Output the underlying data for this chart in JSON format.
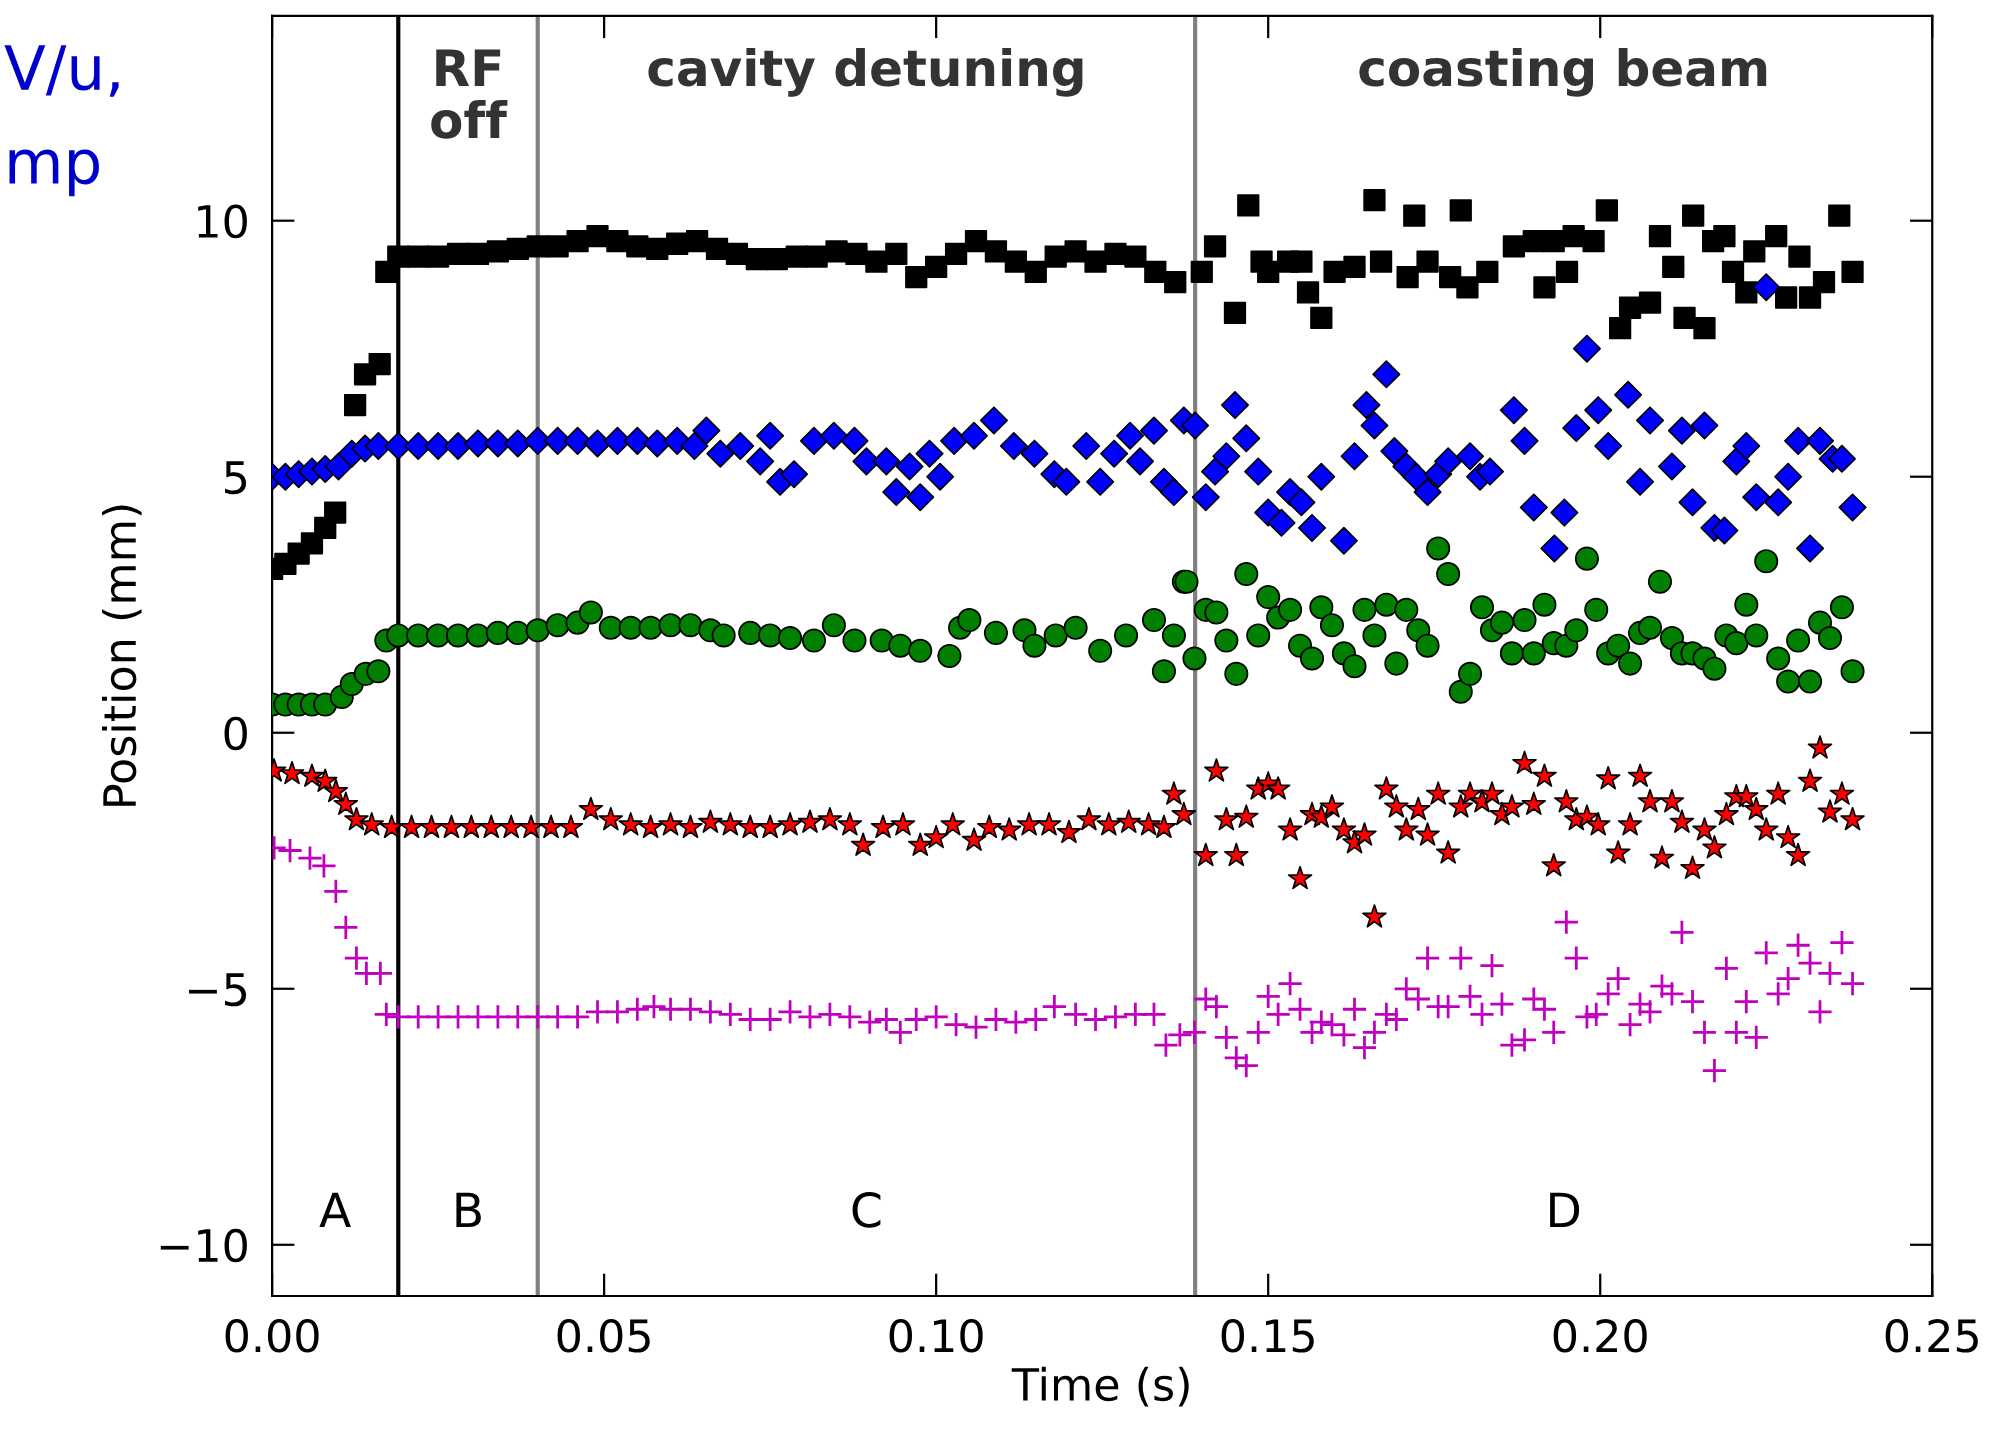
{
  "chart_data": {
    "type": "scatter",
    "xlabel": "Time (s)",
    "ylabel": "Position (mm)",
    "xlim": [
      0,
      0.25
    ],
    "ylim": [
      -11,
      14
    ],
    "xticks": [
      {
        "value": 0,
        "label": "0.00"
      },
      {
        "value": 0.05,
        "label": "0.05"
      },
      {
        "value": 0.1,
        "label": "0.10"
      },
      {
        "value": 0.15,
        "label": "0.15"
      },
      {
        "value": 0.2,
        "label": "0.20"
      },
      {
        "value": 0.25,
        "label": "0.25"
      }
    ],
    "yticks": [
      {
        "value": -10,
        "label": "−10"
      },
      {
        "value": -5,
        "label": "−5"
      },
      0,
      5,
      10
    ],
    "grid": false,
    "legend": false,
    "ref_lines": [
      {
        "axis": "x",
        "value": 0.019,
        "color": "#000000"
      },
      {
        "axis": "x",
        "value": 0.04,
        "color": "#808080"
      },
      {
        "axis": "x",
        "value": 0.139,
        "color": "#808080"
      }
    ],
    "annotations": [
      "RF\noff",
      "cavity detuning",
      "coasting beam",
      "A",
      "B",
      "C",
      "D",
      "V/u,",
      "mp"
    ],
    "series": [
      {
        "color": "#000000",
        "marker": "square",
        "x": [
          0,
          0.002,
          0.004,
          0.006,
          0.008,
          0.0095,
          0.0125,
          0.014,
          0.0162,
          0.0172,
          0.019,
          0.022,
          0.025,
          0.028,
          0.031,
          0.034,
          0.037,
          0.04,
          0.043,
          0.046,
          0.049,
          0.052,
          0.055,
          0.058,
          0.061,
          0.064,
          0.067,
          0.07,
          0.073,
          0.076,
          0.079,
          0.082,
          0.085,
          0.088,
          0.091,
          0.094,
          0.097,
          0.1,
          0.103,
          0.106,
          0.109,
          0.112,
          0.115,
          0.118,
          0.121,
          0.124,
          0.127,
          0.13,
          0.133,
          0.136,
          0.14,
          0.142,
          0.145,
          0.147,
          0.149,
          0.15,
          0.153,
          0.155,
          0.156,
          0.158,
          0.16,
          0.163,
          0.166,
          0.167,
          0.171,
          0.172,
          0.174,
          0.1774,
          0.179,
          0.18,
          0.183,
          0.187,
          0.19,
          0.1916,
          0.193,
          0.195,
          0.196,
          0.199,
          0.201,
          0.203,
          0.2045,
          0.2075,
          0.209,
          0.211,
          0.2127,
          0.214,
          0.2157,
          0.217,
          0.2187,
          0.22,
          0.222,
          0.2232,
          0.2265,
          0.228,
          0.23,
          0.2316,
          0.2337,
          0.236,
          0.238
        ],
        "values": [
          3.2,
          3.3,
          3.5,
          3.7,
          4.0,
          4.3,
          6.4,
          7.0,
          7.2,
          9.0,
          9.3,
          9.3,
          9.3,
          9.35,
          9.35,
          9.4,
          9.45,
          9.5,
          9.5,
          9.6,
          9.7,
          9.6,
          9.5,
          9.45,
          9.55,
          9.6,
          9.45,
          9.35,
          9.25,
          9.25,
          9.3,
          9.3,
          9.4,
          9.35,
          9.2,
          9.35,
          8.9,
          9.1,
          9.35,
          9.6,
          9.4,
          9.2,
          9.0,
          9.3,
          9.4,
          9.2,
          9.35,
          9.3,
          9.0,
          8.8,
          9.0,
          9.5,
          8.2,
          10.3,
          9.2,
          9.0,
          9.2,
          9.2,
          8.6,
          8.1,
          9.0,
          9.1,
          10.4,
          9.2,
          8.9,
          10.1,
          9.2,
          8.9,
          10.2,
          8.7,
          9.0,
          9.5,
          9.6,
          8.7,
          9.6,
          9.0,
          9.7,
          9.6,
          10.2,
          7.9,
          8.3,
          8.4,
          9.7,
          9.1,
          8.1,
          10.1,
          7.9,
          9.6,
          9.7,
          9.0,
          8.6,
          9.4,
          9.7,
          8.5,
          9.3,
          8.5,
          8.8,
          10.1,
          9.0
        ]
      },
      {
        "color": "#0000ff",
        "marker": "diamond",
        "x": [
          0,
          0.002,
          0.004,
          0.006,
          0.008,
          0.01,
          0.012,
          0.014,
          0.016,
          0.019,
          0.022,
          0.025,
          0.028,
          0.031,
          0.034,
          0.037,
          0.04,
          0.043,
          0.046,
          0.049,
          0.052,
          0.055,
          0.058,
          0.061,
          0.0636,
          0.0654,
          0.0675,
          0.0705,
          0.0735,
          0.075,
          0.0765,
          0.0786,
          0.0816,
          0.0846,
          0.0877,
          0.0895,
          0.0925,
          0.094,
          0.096,
          0.0976,
          0.099,
          0.1006,
          0.1027,
          0.1057,
          0.1087,
          0.1117,
          0.1148,
          0.1178,
          0.1196,
          0.1226,
          0.1247,
          0.1268,
          0.1292,
          0.1307,
          0.1328,
          0.1343,
          0.1358,
          0.1373,
          0.139,
          0.1406,
          0.142,
          0.1437,
          0.145,
          0.1467,
          0.1485,
          0.15,
          0.152,
          0.1533,
          0.155,
          0.1566,
          0.158,
          0.1614,
          0.163,
          0.1648,
          0.166,
          0.1678,
          0.169,
          0.1708,
          0.1723,
          0.174,
          0.1756,
          0.1771,
          0.1804,
          0.1819,
          0.1834,
          0.187,
          0.1886,
          0.19,
          0.1931,
          0.1946,
          0.1964,
          0.198,
          0.1997,
          0.2012,
          0.2042,
          0.206,
          0.2075,
          0.2108,
          0.2123,
          0.2139,
          0.2157,
          0.2172,
          0.2187,
          0.2205,
          0.222,
          0.2235,
          0.225,
          0.2268,
          0.2283,
          0.2298,
          0.2316,
          0.2331,
          0.235,
          0.2364,
          0.238
        ],
        "values": [
          5.0,
          5.0,
          5.05,
          5.1,
          5.15,
          5.2,
          5.45,
          5.55,
          5.6,
          5.6,
          5.6,
          5.6,
          5.6,
          5.65,
          5.65,
          5.65,
          5.7,
          5.7,
          5.7,
          5.65,
          5.7,
          5.7,
          5.65,
          5.7,
          5.6,
          5.9,
          5.45,
          5.6,
          5.3,
          5.8,
          4.9,
          5.05,
          5.7,
          5.8,
          5.7,
          5.3,
          5.3,
          4.7,
          5.2,
          4.6,
          5.45,
          5.0,
          5.7,
          5.8,
          6.1,
          5.6,
          5.45,
          5.05,
          4.9,
          5.6,
          4.9,
          5.45,
          5.8,
          5.3,
          5.9,
          4.9,
          4.7,
          6.1,
          6.0,
          4.6,
          5.1,
          5.4,
          6.4,
          5.75,
          5.1,
          4.3,
          4.1,
          4.7,
          4.5,
          4.0,
          5.0,
          3.75,
          5.4,
          6.4,
          6.0,
          7.0,
          5.5,
          5.2,
          5.0,
          4.7,
          5.05,
          5.3,
          5.4,
          5.0,
          5.1,
          6.3,
          5.7,
          4.4,
          3.6,
          4.3,
          5.95,
          7.5,
          6.3,
          5.6,
          6.6,
          4.9,
          6.1,
          5.2,
          5.9,
          4.5,
          6.0,
          4.0,
          3.95,
          5.3,
          5.6,
          4.6,
          8.7,
          4.5,
          5.0,
          5.7,
          3.6,
          5.7,
          5.35,
          5.35,
          4.4
        ]
      },
      {
        "color": "#007f00",
        "marker": "circle",
        "x": [
          0,
          0.002,
          0.004,
          0.006,
          0.008,
          0.0105,
          0.012,
          0.0141,
          0.016,
          0.0172,
          0.019,
          0.022,
          0.025,
          0.028,
          0.031,
          0.034,
          0.037,
          0.04,
          0.043,
          0.046,
          0.048,
          0.051,
          0.054,
          0.057,
          0.06,
          0.063,
          0.066,
          0.068,
          0.072,
          0.075,
          0.078,
          0.0816,
          0.0846,
          0.0877,
          0.0918,
          0.0946,
          0.0976,
          0.102,
          0.1036,
          0.105,
          0.109,
          0.1133,
          0.1148,
          0.118,
          0.121,
          0.1247,
          0.1286,
          0.1328,
          0.1343,
          0.1358,
          0.1373,
          0.1377,
          0.1389,
          0.1406,
          0.1422,
          0.1437,
          0.1452,
          0.1467,
          0.1485,
          0.15,
          0.1515,
          0.1533,
          0.1548,
          0.1566,
          0.158,
          0.1596,
          0.1614,
          0.163,
          0.1645,
          0.166,
          0.1678,
          0.1693,
          0.1708,
          0.1726,
          0.174,
          0.1756,
          0.1771,
          0.179,
          0.1804,
          0.1822,
          0.1837,
          0.1852,
          0.1867,
          0.1886,
          0.19,
          0.1916,
          0.193,
          0.1949,
          0.1964,
          0.198,
          0.1994,
          0.2012,
          0.2027,
          0.2045,
          0.206,
          0.2075,
          0.209,
          0.2108,
          0.2123,
          0.2139,
          0.2157,
          0.2172,
          0.219,
          0.2205,
          0.222,
          0.2235,
          0.225,
          0.2268,
          0.2283,
          0.2298,
          0.2316,
          0.2331,
          0.2346,
          0.2364,
          0.238
        ],
        "values": [
          0.55,
          0.55,
          0.55,
          0.55,
          0.55,
          0.7,
          0.95,
          1.15,
          1.2,
          1.8,
          1.9,
          1.9,
          1.9,
          1.9,
          1.9,
          1.95,
          1.95,
          2.0,
          2.1,
          2.15,
          2.35,
          2.05,
          2.05,
          2.05,
          2.1,
          2.1,
          2.0,
          1.9,
          1.95,
          1.9,
          1.85,
          1.8,
          2.1,
          1.8,
          1.8,
          1.7,
          1.6,
          1.5,
          2.05,
          2.2,
          1.95,
          2.0,
          1.7,
          1.9,
          2.05,
          1.6,
          1.9,
          2.2,
          1.2,
          1.9,
          2.95,
          2.95,
          1.45,
          2.4,
          2.35,
          1.8,
          1.15,
          3.1,
          1.9,
          2.65,
          2.25,
          2.4,
          1.7,
          1.45,
          2.45,
          2.1,
          1.55,
          1.3,
          2.4,
          1.9,
          2.5,
          1.35,
          2.4,
          2.0,
          1.7,
          3.6,
          3.1,
          0.8,
          1.15,
          2.45,
          2.0,
          2.15,
          1.55,
          2.2,
          1.55,
          2.5,
          1.75,
          1.7,
          2.0,
          3.4,
          2.4,
          1.55,
          1.7,
          1.35,
          1.95,
          2.05,
          2.95,
          1.85,
          1.55,
          1.55,
          1.45,
          1.25,
          1.9,
          1.75,
          2.5,
          1.9,
          3.35,
          1.45,
          1.0,
          1.8,
          1.0,
          2.15,
          1.85,
          2.45,
          1.2
        ]
      },
      {
        "color": "#ff0000",
        "marker": "star",
        "x": [
          0.0003,
          0.003,
          0.006,
          0.008,
          0.0096,
          0.0111,
          0.0127,
          0.015,
          0.018,
          0.021,
          0.024,
          0.027,
          0.03,
          0.033,
          0.036,
          0.039,
          0.042,
          0.045,
          0.048,
          0.051,
          0.054,
          0.057,
          0.06,
          0.063,
          0.066,
          0.069,
          0.072,
          0.075,
          0.078,
          0.081,
          0.084,
          0.087,
          0.089,
          0.092,
          0.095,
          0.0976,
          0.1,
          0.1025,
          0.1057,
          0.108,
          0.111,
          0.114,
          0.117,
          0.12,
          0.123,
          0.126,
          0.129,
          0.132,
          0.1343,
          0.1358,
          0.1373,
          0.1406,
          0.1422,
          0.1437,
          0.1452,
          0.1467,
          0.1485,
          0.15,
          0.1515,
          0.1533,
          0.1548,
          0.1566,
          0.158,
          0.1596,
          0.1614,
          0.163,
          0.1645,
          0.166,
          0.1678,
          0.1693,
          0.1708,
          0.1726,
          0.174,
          0.1756,
          0.1771,
          0.179,
          0.1804,
          0.1822,
          0.1837,
          0.1852,
          0.1867,
          0.1886,
          0.19,
          0.1916,
          0.193,
          0.1949,
          0.1964,
          0.198,
          0.1997,
          0.2012,
          0.2027,
          0.2045,
          0.206,
          0.2075,
          0.2093,
          0.2108,
          0.2123,
          0.2139,
          0.2157,
          0.2172,
          0.219,
          0.2205,
          0.222,
          0.2235,
          0.225,
          0.2268,
          0.2283,
          0.2298,
          0.2316,
          0.2331,
          0.2346,
          0.2364,
          0.238
        ],
        "values": [
          -0.75,
          -0.8,
          -0.85,
          -0.95,
          -1.15,
          -1.4,
          -1.7,
          -1.8,
          -1.85,
          -1.85,
          -1.85,
          -1.85,
          -1.85,
          -1.85,
          -1.85,
          -1.85,
          -1.85,
          -1.85,
          -1.5,
          -1.7,
          -1.8,
          -1.85,
          -1.8,
          -1.85,
          -1.75,
          -1.8,
          -1.85,
          -1.85,
          -1.8,
          -1.75,
          -1.7,
          -1.8,
          -2.2,
          -1.85,
          -1.8,
          -2.2,
          -2.05,
          -1.8,
          -2.1,
          -1.85,
          -1.9,
          -1.8,
          -1.8,
          -1.95,
          -1.7,
          -1.8,
          -1.75,
          -1.8,
          -1.85,
          -1.2,
          -1.6,
          -2.4,
          -0.75,
          -1.7,
          -2.4,
          -1.65,
          -1.1,
          -1.0,
          -1.1,
          -1.9,
          -2.85,
          -1.6,
          -1.65,
          -1.45,
          -1.9,
          -2.15,
          -2.0,
          -3.6,
          -1.1,
          -1.45,
          -1.9,
          -1.5,
          -2.0,
          -1.2,
          -2.35,
          -1.45,
          -1.2,
          -1.35,
          -1.2,
          -1.6,
          -1.45,
          -0.6,
          -1.4,
          -0.85,
          -2.6,
          -1.35,
          -1.7,
          -1.65,
          -1.8,
          -0.9,
          -2.35,
          -1.8,
          -0.85,
          -1.35,
          -2.45,
          -1.35,
          -1.75,
          -2.65,
          -1.9,
          -2.25,
          -1.6,
          -1.25,
          -1.25,
          -1.5,
          -1.9,
          -1.2,
          -2.05,
          -2.4,
          -0.95,
          -0.3,
          -1.55,
          -1.2,
          -1.7
        ]
      },
      {
        "color": "#bf00bf",
        "marker": "cross",
        "x": [
          0.0003,
          0.0027,
          0.0057,
          0.0078,
          0.0096,
          0.0111,
          0.0127,
          0.0142,
          0.0163,
          0.0172,
          0.019,
          0.022,
          0.025,
          0.028,
          0.031,
          0.034,
          0.037,
          0.04,
          0.043,
          0.046,
          0.049,
          0.052,
          0.055,
          0.0575,
          0.06,
          0.063,
          0.066,
          0.069,
          0.072,
          0.075,
          0.078,
          0.081,
          0.084,
          0.087,
          0.09,
          0.0925,
          0.0946,
          0.097,
          0.1,
          0.103,
          0.106,
          0.109,
          0.112,
          0.115,
          0.1178,
          0.121,
          0.124,
          0.127,
          0.13,
          0.1328,
          0.1346,
          0.1367,
          0.1389,
          0.1406,
          0.1422,
          0.1437,
          0.1452,
          0.1467,
          0.1485,
          0.15,
          0.1515,
          0.1533,
          0.1548,
          0.1566,
          0.158,
          0.1596,
          0.1614,
          0.163,
          0.1645,
          0.166,
          0.1678,
          0.1693,
          0.1708,
          0.1726,
          0.174,
          0.1756,
          0.1771,
          0.179,
          0.1804,
          0.1822,
          0.1837,
          0.1852,
          0.1867,
          0.1886,
          0.19,
          0.1916,
          0.193,
          0.1949,
          0.1964,
          0.198,
          0.1994,
          0.2012,
          0.2027,
          0.2045,
          0.206,
          0.2075,
          0.2093,
          0.2108,
          0.2123,
          0.2139,
          0.2157,
          0.2172,
          0.219,
          0.2205,
          0.222,
          0.2235,
          0.225,
          0.2268,
          0.2283,
          0.2298,
          0.2316,
          0.2331,
          0.2346,
          0.2364,
          0.238
        ],
        "values": [
          -2.25,
          -2.3,
          -2.45,
          -2.6,
          -3.1,
          -3.8,
          -4.4,
          -4.7,
          -4.7,
          -5.5,
          -5.55,
          -5.55,
          -5.55,
          -5.55,
          -5.55,
          -5.55,
          -5.55,
          -5.55,
          -5.55,
          -5.55,
          -5.45,
          -5.45,
          -5.4,
          -5.35,
          -5.4,
          -5.4,
          -5.45,
          -5.5,
          -5.6,
          -5.6,
          -5.45,
          -5.55,
          -5.5,
          -5.55,
          -5.65,
          -5.6,
          -5.85,
          -5.6,
          -5.55,
          -5.7,
          -5.75,
          -5.6,
          -5.65,
          -5.6,
          -5.35,
          -5.5,
          -5.6,
          -5.55,
          -5.5,
          -5.5,
          -6.1,
          -5.9,
          -5.85,
          -5.2,
          -5.35,
          -5.95,
          -6.35,
          -6.5,
          -5.85,
          -5.15,
          -5.5,
          -4.9,
          -5.4,
          -5.85,
          -5.65,
          -5.7,
          -5.9,
          -5.4,
          -6.15,
          -5.85,
          -5.5,
          -5.6,
          -5.0,
          -5.2,
          -4.4,
          -5.35,
          -5.35,
          -4.4,
          -5.15,
          -5.5,
          -4.55,
          -5.3,
          -6.1,
          -6.0,
          -5.2,
          -5.4,
          -5.85,
          -3.7,
          -4.4,
          -5.55,
          -5.5,
          -5.1,
          -4.8,
          -5.7,
          -5.3,
          -5.45,
          -4.95,
          -5.1,
          -3.9,
          -5.25,
          -5.85,
          -6.6,
          -4.6,
          -5.85,
          -5.25,
          -5.95,
          -4.3,
          -5.1,
          -4.8,
          -4.15,
          -4.5,
          -5.45,
          -4.7,
          -4.1,
          -4.9
        ]
      }
    ]
  }
}
